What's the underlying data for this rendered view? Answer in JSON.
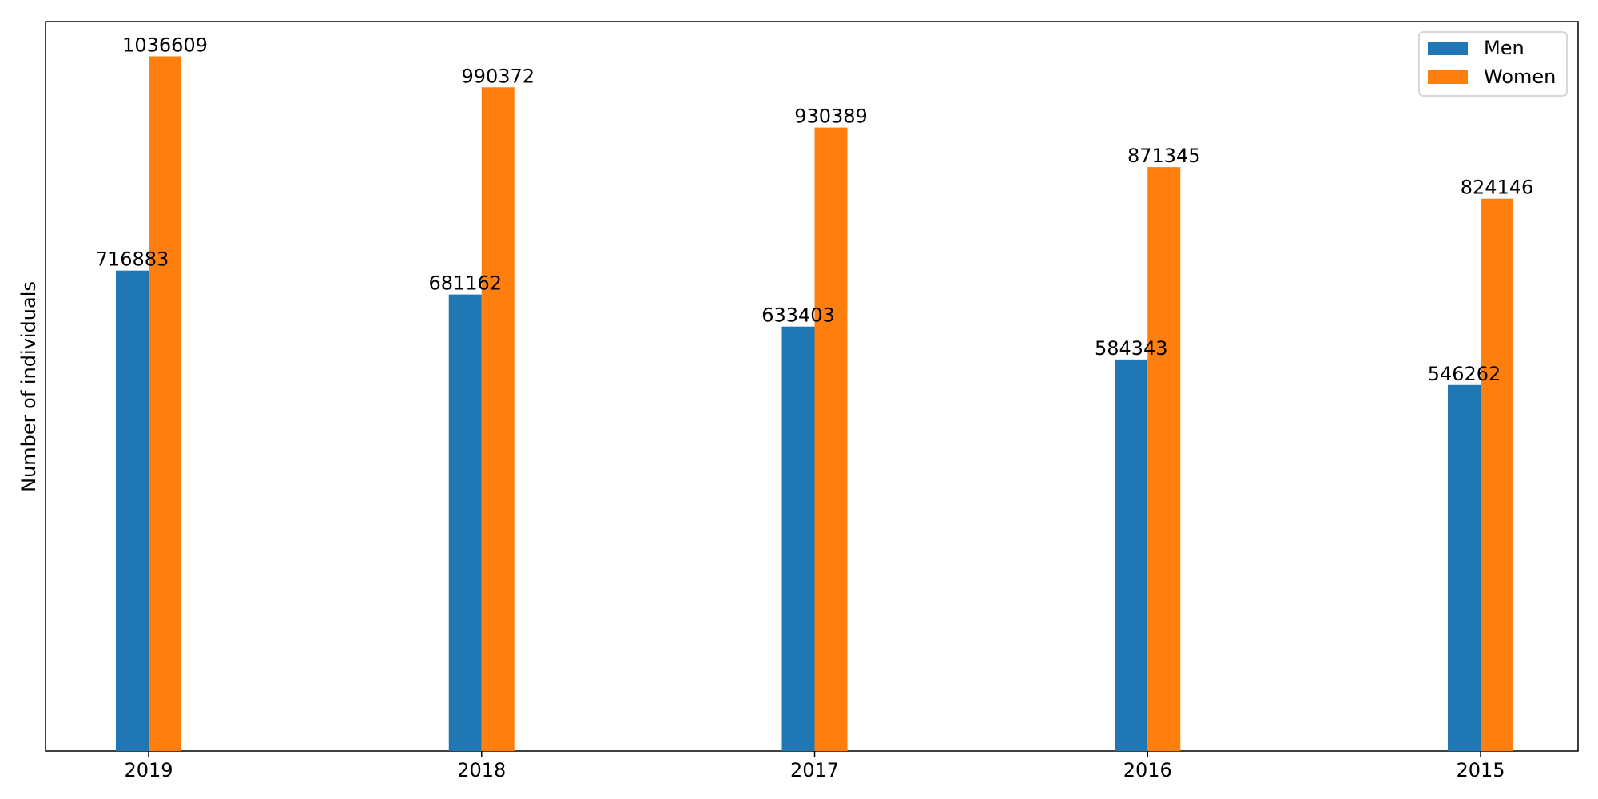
{
  "chart_data": {
    "type": "bar",
    "categories": [
      "2019",
      "2018",
      "2017",
      "2016",
      "2015"
    ],
    "series": [
      {
        "name": "Men",
        "color": "#1f77b4",
        "values": [
          716883,
          681162,
          633403,
          584343,
          546262
        ]
      },
      {
        "name": "Women",
        "color": "#ff7f0e",
        "values": [
          1036609,
          990372,
          930389,
          871345,
          824146
        ]
      }
    ],
    "title": "",
    "xlabel": "",
    "ylabel": "Number of individuals",
    "ylim": [
      0,
      1088439
    ],
    "grid": false,
    "y_ticks_visible": false,
    "legend": {
      "position": "top-right"
    }
  }
}
